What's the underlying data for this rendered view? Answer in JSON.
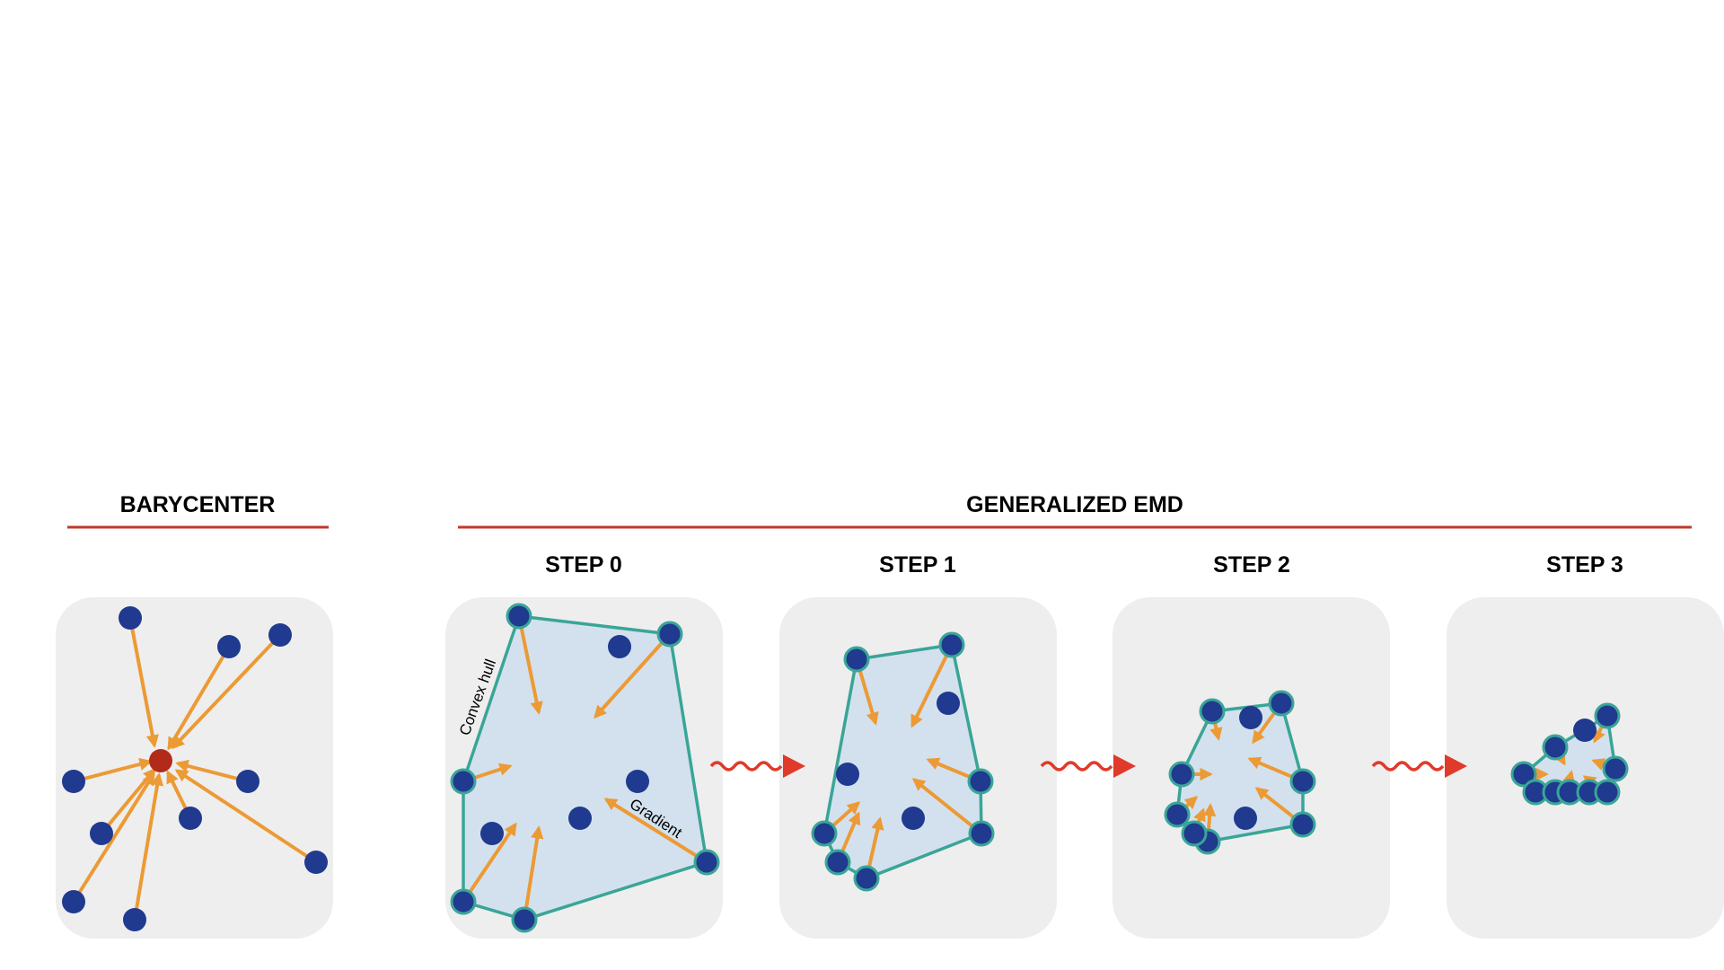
{
  "headers": {
    "barycenter": "BARYCENTER",
    "generalized_emd": "GENERALIZED EMD"
  },
  "steps": [
    {
      "label": "STEP 0"
    },
    {
      "label": "STEP 1"
    },
    {
      "label": "STEP 2"
    },
    {
      "label": "STEP 3"
    }
  ],
  "annotations": {
    "convex_hull": "Convex hull",
    "gradient": "Gradient"
  },
  "colors": {
    "point": "#1f3a8f",
    "barycenter_point": "#b22a1a",
    "arrow": "#ec9a35",
    "hull_stroke": "#3aa597",
    "hull_fill": "#d3e1ee",
    "panel": "#eeeeee",
    "rule": "#c0392b",
    "transition_arrow": "#e03a2a"
  },
  "icons": {
    "transition": "wavy-arrow-icon"
  }
}
